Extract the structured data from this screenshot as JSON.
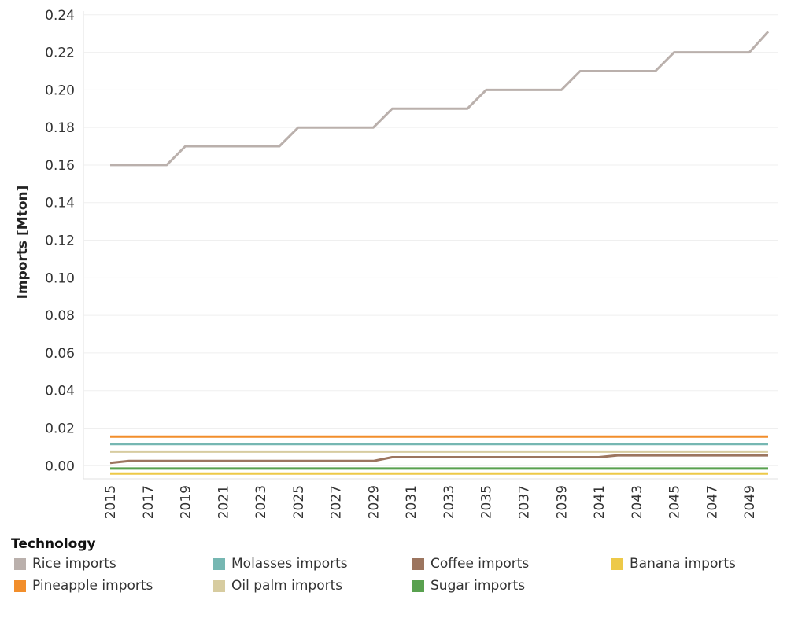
{
  "chart_data": {
    "type": "line",
    "ylabel": "Imports [Mton]",
    "xlabel": "",
    "ylim": [
      -0.007,
      0.242
    ],
    "y_ticks": [
      "0.24",
      "0.22",
      "0.20",
      "0.18",
      "0.16",
      "0.14",
      "0.12",
      "0.10",
      "0.08",
      "0.06",
      "0.04",
      "0.02",
      "0.00"
    ],
    "x_ticks": [
      "2015",
      "2017",
      "2019",
      "2021",
      "2023",
      "2025",
      "2027",
      "2029",
      "2031",
      "2033",
      "2035",
      "2037",
      "2039",
      "2041",
      "2043",
      "2045",
      "2047",
      "2049"
    ],
    "x_years": [
      2015,
      2016,
      2017,
      2018,
      2019,
      2020,
      2021,
      2022,
      2023,
      2024,
      2025,
      2026,
      2027,
      2028,
      2029,
      2030,
      2031,
      2032,
      2033,
      2034,
      2035,
      2036,
      2037,
      2038,
      2039,
      2040,
      2041,
      2042,
      2043,
      2044,
      2045,
      2046,
      2047,
      2048,
      2049,
      2050
    ],
    "grid": "horizontal",
    "legend_position": "bottom",
    "series": [
      {
        "name": "Rice imports",
        "color": "#bab0ac",
        "values": [
          0.16,
          0.16,
          0.16,
          0.16,
          0.17,
          0.17,
          0.17,
          0.17,
          0.17,
          0.17,
          0.18,
          0.18,
          0.18,
          0.18,
          0.18,
          0.19,
          0.19,
          0.19,
          0.19,
          0.19,
          0.2,
          0.2,
          0.2,
          0.2,
          0.2,
          0.21,
          0.21,
          0.21,
          0.21,
          0.21,
          0.22,
          0.22,
          0.22,
          0.22,
          0.22,
          0.231
        ]
      },
      {
        "name": "Pineapple imports",
        "color": "#f28e2b",
        "values": [
          0.0155,
          0.0155,
          0.0155,
          0.0155,
          0.0155,
          0.0155,
          0.0155,
          0.0155,
          0.0155,
          0.0155,
          0.0155,
          0.0155,
          0.0155,
          0.0155,
          0.0155,
          0.0155,
          0.0155,
          0.0155,
          0.0155,
          0.0155,
          0.0155,
          0.0155,
          0.0155,
          0.0155,
          0.0155,
          0.0155,
          0.0155,
          0.0155,
          0.0155,
          0.0155,
          0.0155,
          0.0155,
          0.0155,
          0.0155,
          0.0155,
          0.0155
        ]
      },
      {
        "name": "Molasses imports",
        "color": "#76b7b2",
        "values": [
          0.0115,
          0.0115,
          0.0115,
          0.0115,
          0.0115,
          0.0115,
          0.0115,
          0.0115,
          0.0115,
          0.0115,
          0.0115,
          0.0115,
          0.0115,
          0.0115,
          0.0115,
          0.0115,
          0.0115,
          0.0115,
          0.0115,
          0.0115,
          0.0115,
          0.0115,
          0.0115,
          0.0115,
          0.0115,
          0.0115,
          0.0115,
          0.0115,
          0.0115,
          0.0115,
          0.0115,
          0.0115,
          0.0115,
          0.0115,
          0.0115,
          0.0115
        ]
      },
      {
        "name": "Oil palm imports",
        "color": "#d7cca0",
        "values": [
          0.0075,
          0.0075,
          0.0075,
          0.0075,
          0.0075,
          0.0075,
          0.0075,
          0.0075,
          0.0075,
          0.0075,
          0.0075,
          0.0075,
          0.0075,
          0.0075,
          0.0075,
          0.0075,
          0.0075,
          0.0075,
          0.0075,
          0.0075,
          0.0075,
          0.0075,
          0.0075,
          0.0075,
          0.0075,
          0.0075,
          0.0075,
          0.0075,
          0.0075,
          0.0075,
          0.0075,
          0.0075,
          0.0075,
          0.0075,
          0.0075,
          0.0075
        ]
      },
      {
        "name": "Coffee imports",
        "color": "#9c755f",
        "values": [
          0.0015,
          0.0025,
          0.0025,
          0.0025,
          0.0025,
          0.0025,
          0.0025,
          0.0025,
          0.0025,
          0.0025,
          0.0025,
          0.0025,
          0.0025,
          0.0025,
          0.0025,
          0.0045,
          0.0045,
          0.0045,
          0.0045,
          0.0045,
          0.0045,
          0.0045,
          0.0045,
          0.0045,
          0.0045,
          0.0045,
          0.0045,
          0.0055,
          0.0055,
          0.0055,
          0.0055,
          0.0055,
          0.0055,
          0.0055,
          0.0055,
          0.0055
        ]
      },
      {
        "name": "Sugar imports",
        "color": "#59a14f",
        "values": [
          -0.0015,
          -0.0015,
          -0.0015,
          -0.0015,
          -0.0015,
          -0.0015,
          -0.0015,
          -0.0015,
          -0.0015,
          -0.0015,
          -0.0015,
          -0.0015,
          -0.0015,
          -0.0015,
          -0.0015,
          -0.0015,
          -0.0015,
          -0.0015,
          -0.0015,
          -0.0015,
          -0.0015,
          -0.0015,
          -0.0015,
          -0.0015,
          -0.0015,
          -0.0015,
          -0.0015,
          -0.0015,
          -0.0015,
          -0.0015,
          -0.0015,
          -0.0015,
          -0.0015,
          -0.0015,
          -0.0015,
          -0.0015
        ]
      },
      {
        "name": "Banana imports",
        "color": "#edc948",
        "values": [
          -0.0042,
          -0.0042,
          -0.0042,
          -0.0042,
          -0.0042,
          -0.0042,
          -0.0042,
          -0.0042,
          -0.0042,
          -0.0042,
          -0.0042,
          -0.0042,
          -0.0042,
          -0.0042,
          -0.0042,
          -0.0042,
          -0.0042,
          -0.0042,
          -0.0042,
          -0.0042,
          -0.0042,
          -0.0042,
          -0.0042,
          -0.0042,
          -0.0042,
          -0.0042,
          -0.0042,
          -0.0042,
          -0.0042,
          -0.0042,
          -0.0042,
          -0.0042,
          -0.0042,
          -0.0042,
          -0.0042,
          -0.0042
        ]
      }
    ]
  },
  "legend": {
    "title": "Technology",
    "items": [
      {
        "label": "Rice imports",
        "color": "#bab0ac",
        "icon": "square-swatch"
      },
      {
        "label": "Molasses imports",
        "color": "#76b7b2",
        "icon": "square-swatch"
      },
      {
        "label": "Coffee imports",
        "color": "#9c755f",
        "icon": "square-swatch"
      },
      {
        "label": "Banana imports",
        "color": "#edc948",
        "icon": "square-swatch"
      },
      {
        "label": "Pineapple imports",
        "color": "#f28e2b",
        "icon": "square-swatch"
      },
      {
        "label": "Oil palm imports",
        "color": "#d7cca0",
        "icon": "square-swatch"
      },
      {
        "label": "Sugar imports",
        "color": "#59a14f",
        "icon": "square-swatch"
      }
    ]
  }
}
